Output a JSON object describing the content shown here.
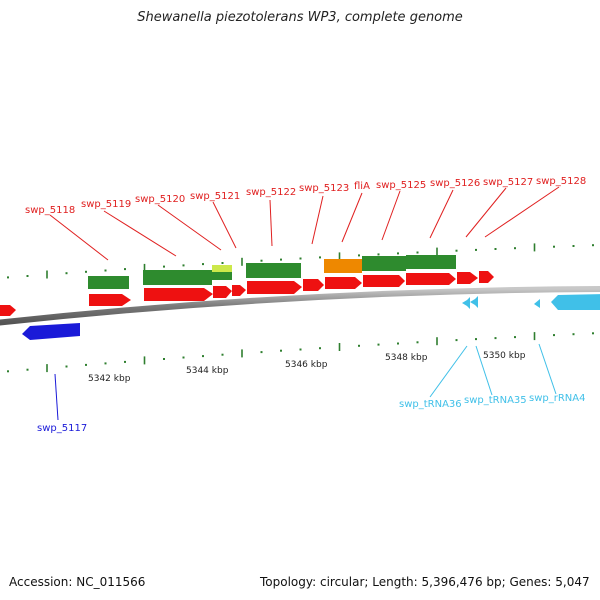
{
  "title": "Shewanella piezotolerans WP3, complete genome",
  "footer": {
    "accession": "Accession: NC_011566",
    "summary": "Topology: circular; Length: 5,396,476 bp; Genes: 5,047"
  },
  "colors": {
    "gene_label": "#e02020",
    "gene_bar": "#ee1111",
    "cds_green": "#2e8b2e",
    "cds_orange": "#ee8800",
    "cds_yellow": "#cce84a",
    "reverse_gene": "#1a1ad8",
    "rna": "#40c0e8",
    "backbone": "#8a8a8a",
    "tick": "#2f7f2f"
  },
  "scale_labels": [
    "5342 kbp",
    "5344 kbp",
    "5346 kbp",
    "5348 kbp",
    "5350 kbp"
  ],
  "gene_labels": [
    "swp_5118",
    "swp_5119",
    "swp_5120",
    "swp_5121",
    "swp_5122",
    "swp_5123",
    "fliA",
    "swp_5125",
    "swp_5126",
    "swp_5127",
    "swp_5128"
  ],
  "reverse_gene_label": "swp_5117",
  "rna_labels": [
    "swp_tRNA36",
    "swp_tRNA35",
    "swp_rRNA4"
  ]
}
